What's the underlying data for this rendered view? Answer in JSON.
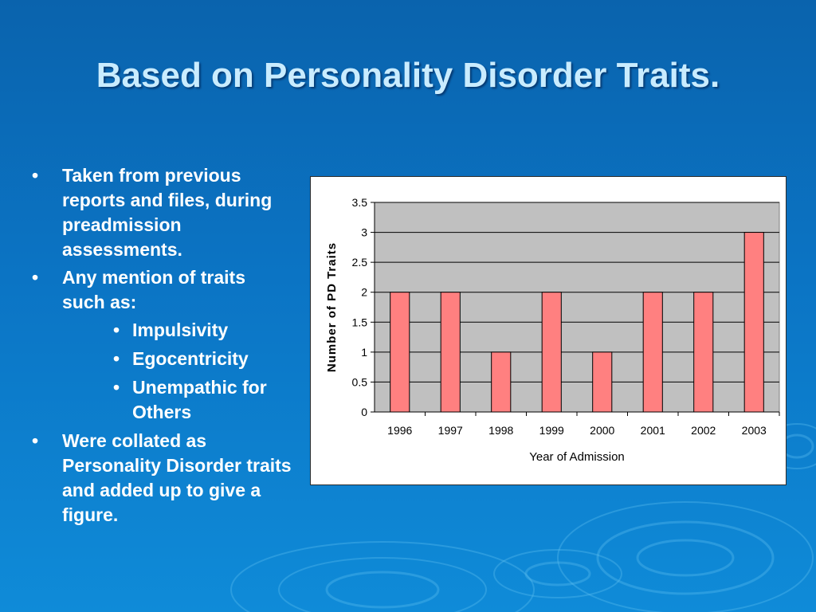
{
  "slide": {
    "title": "Based on Personality Disorder Traits.",
    "bullets": [
      "Taken from previous reports and files, during preadmission assessments.",
      "Any mention of traits such as:",
      "Were collated as Personality Disorder traits and added up to give a figure."
    ],
    "sub_bullets": [
      "Impulsivity",
      "Egocentricity",
      "Unempathic for Others"
    ],
    "bullet_glyph": "•"
  },
  "colors": {
    "background": "#0b6fbd",
    "title": "#c9ecff",
    "bar_fill": "#ff8080",
    "plot_area": "#c0c0c0"
  },
  "chart_data": {
    "type": "bar",
    "categories": [
      "1996",
      "1997",
      "1998",
      "1999",
      "2000",
      "2001",
      "2002",
      "2003"
    ],
    "values": [
      2,
      2,
      1,
      2,
      1,
      2,
      2,
      3
    ],
    "xlabel": "Year of Admission",
    "ylabel": "Number of PD Traits",
    "ylim": [
      0,
      3.5
    ],
    "yticks": [
      "0",
      "0.5",
      "1",
      "1.5",
      "2",
      "2.5",
      "3",
      "3.5"
    ],
    "grid": true,
    "legend": "none"
  }
}
